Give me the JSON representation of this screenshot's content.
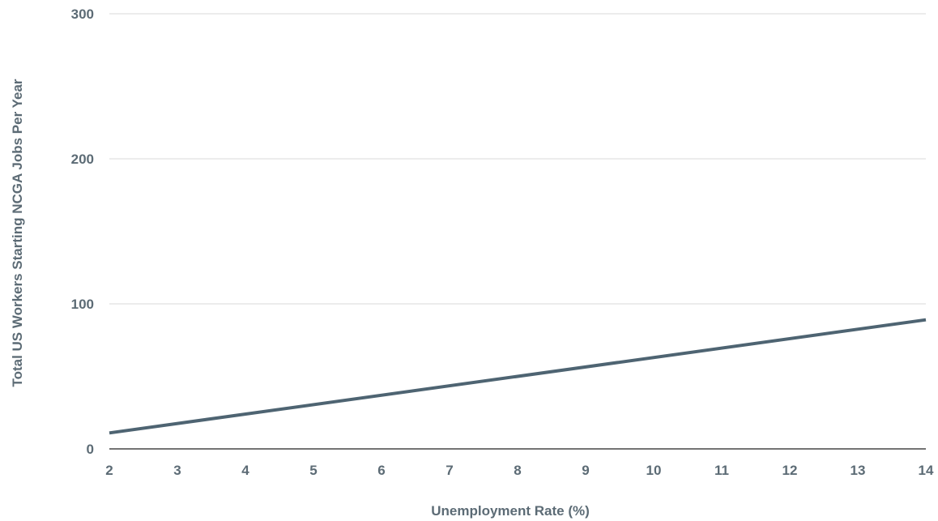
{
  "chart_data": {
    "type": "line",
    "title": "",
    "xlabel": "Unemployment Rate (%)",
    "ylabel": "Total US Workers Starting NCGA Jobs Per Year",
    "xlim": [
      2,
      14
    ],
    "ylim": [
      0,
      300
    ],
    "x_ticks": [
      2,
      3,
      4,
      5,
      6,
      7,
      8,
      9,
      10,
      11,
      12,
      13,
      14
    ],
    "y_ticks": [
      0,
      100,
      200,
      300
    ],
    "grid": true,
    "series": [
      {
        "color": "#4e6472",
        "x": [
          2,
          14
        ],
        "y": [
          11,
          89
        ]
      }
    ]
  }
}
